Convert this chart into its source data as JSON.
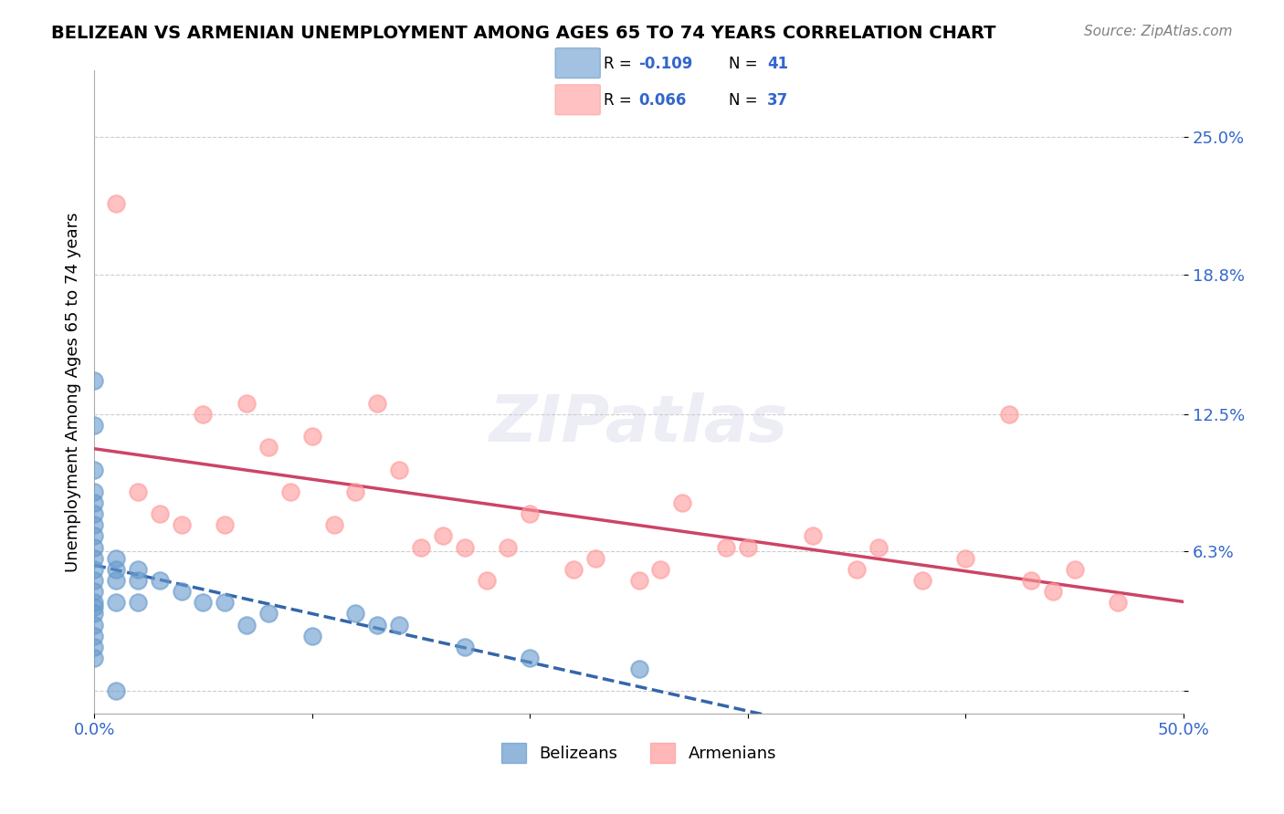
{
  "title": "BELIZEAN VS ARMENIAN UNEMPLOYMENT AMONG AGES 65 TO 74 YEARS CORRELATION CHART",
  "source": "Source: ZipAtlas.com",
  "xlabel_label": "",
  "ylabel_label": "Unemployment Among Ages 65 to 74 years",
  "xlim": [
    0.0,
    0.5
  ],
  "ylim": [
    -0.01,
    0.28
  ],
  "xticks": [
    0.0,
    0.1,
    0.2,
    0.3,
    0.4,
    0.5
  ],
  "xticklabels": [
    "0.0%",
    "",
    "",
    "",
    "",
    "50.0%"
  ],
  "ytick_positions": [
    0.0,
    0.063,
    0.125,
    0.188,
    0.25
  ],
  "yticklabels": [
    "",
    "6.3%",
    "12.5%",
    "18.8%",
    "25.0%"
  ],
  "belizean_R": -0.109,
  "belizean_N": 41,
  "armenian_R": 0.066,
  "armenian_N": 37,
  "watermark": "ZIPatlas",
  "blue_color": "#6699CC",
  "pink_color": "#FF9999",
  "blue_line_color": "#3366AA",
  "pink_line_color": "#CC4466",
  "grid_color": "#CCCCCC",
  "belizean_points_x": [
    0.0,
    0.0,
    0.0,
    0.0,
    0.0,
    0.0,
    0.0,
    0.0,
    0.0,
    0.0,
    0.0,
    0.0,
    0.0,
    0.0,
    0.0,
    0.0,
    0.0,
    0.0,
    0.0,
    0.0,
    0.01,
    0.01,
    0.01,
    0.01,
    0.02,
    0.02,
    0.02,
    0.03,
    0.04,
    0.05,
    0.06,
    0.07,
    0.08,
    0.1,
    0.12,
    0.13,
    0.14,
    0.17,
    0.2,
    0.25,
    0.01
  ],
  "belizean_points_y": [
    0.14,
    0.12,
    0.1,
    0.09,
    0.085,
    0.08,
    0.075,
    0.07,
    0.065,
    0.06,
    0.055,
    0.05,
    0.045,
    0.04,
    0.038,
    0.035,
    0.03,
    0.025,
    0.02,
    0.015,
    0.06,
    0.055,
    0.05,
    0.04,
    0.055,
    0.05,
    0.04,
    0.05,
    0.045,
    0.04,
    0.04,
    0.03,
    0.035,
    0.025,
    0.035,
    0.03,
    0.03,
    0.02,
    0.015,
    0.01,
    0.0
  ],
  "armenian_points_x": [
    0.01,
    0.05,
    0.07,
    0.08,
    0.1,
    0.12,
    0.13,
    0.14,
    0.15,
    0.17,
    0.18,
    0.2,
    0.22,
    0.25,
    0.27,
    0.3,
    0.33,
    0.36,
    0.38,
    0.4,
    0.42,
    0.45,
    0.47,
    0.02,
    0.03,
    0.04,
    0.06,
    0.09,
    0.11,
    0.16,
    0.19,
    0.23,
    0.26,
    0.29,
    0.35,
    0.43,
    0.44
  ],
  "armenian_points_y": [
    0.22,
    0.125,
    0.13,
    0.11,
    0.115,
    0.09,
    0.13,
    0.1,
    0.065,
    0.065,
    0.05,
    0.08,
    0.055,
    0.05,
    0.085,
    0.065,
    0.07,
    0.065,
    0.05,
    0.06,
    0.125,
    0.055,
    0.04,
    0.09,
    0.08,
    0.075,
    0.075,
    0.09,
    0.075,
    0.07,
    0.065,
    0.06,
    0.055,
    0.065,
    0.055,
    0.05,
    0.045
  ]
}
